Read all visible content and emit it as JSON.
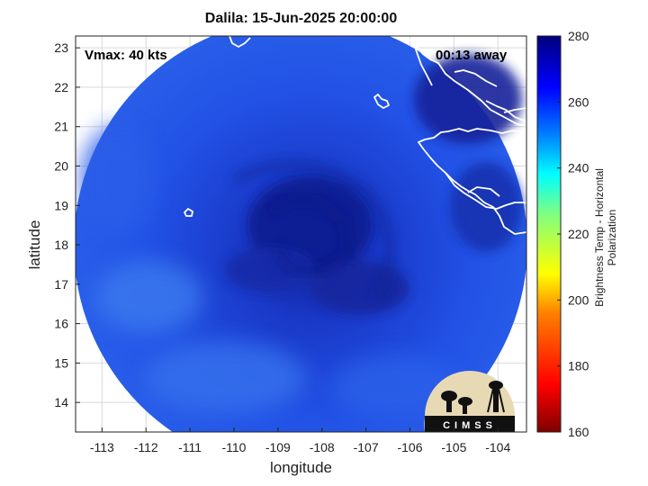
{
  "title": "Dalila: 15-Jun-2025 20:00:00",
  "vmax_label": "Vmax: 40 kts",
  "time_away_label": "00:13 away",
  "xlabel": "longitude",
  "ylabel": "latitude",
  "colorbar_label": "Brightness Temp - Horizontal Polarization",
  "logo_text": "CIMSS",
  "chart_data": {
    "type": "heatmap",
    "x_ticks": [
      -113,
      -112,
      -111,
      -110,
      -109,
      -108,
      -107,
      -106,
      -105,
      -104
    ],
    "y_ticks": [
      14,
      15,
      16,
      17,
      18,
      19,
      20,
      21,
      22,
      23
    ],
    "xlim": [
      -113.6,
      -103.35
    ],
    "ylim": [
      13.25,
      23.3
    ],
    "colorbar_ticks": [
      160,
      180,
      200,
      220,
      240,
      260,
      280
    ],
    "colorbar_range": [
      160,
      280
    ],
    "grid": true,
    "storm_center": {
      "lon": -108.9,
      "lat": 18.6
    }
  },
  "colors": {
    "swath_base": "#1f4fe6",
    "swath_dark": "#0d1e98",
    "swath_light": "#3f82f0",
    "coastline": "#ffffff"
  }
}
